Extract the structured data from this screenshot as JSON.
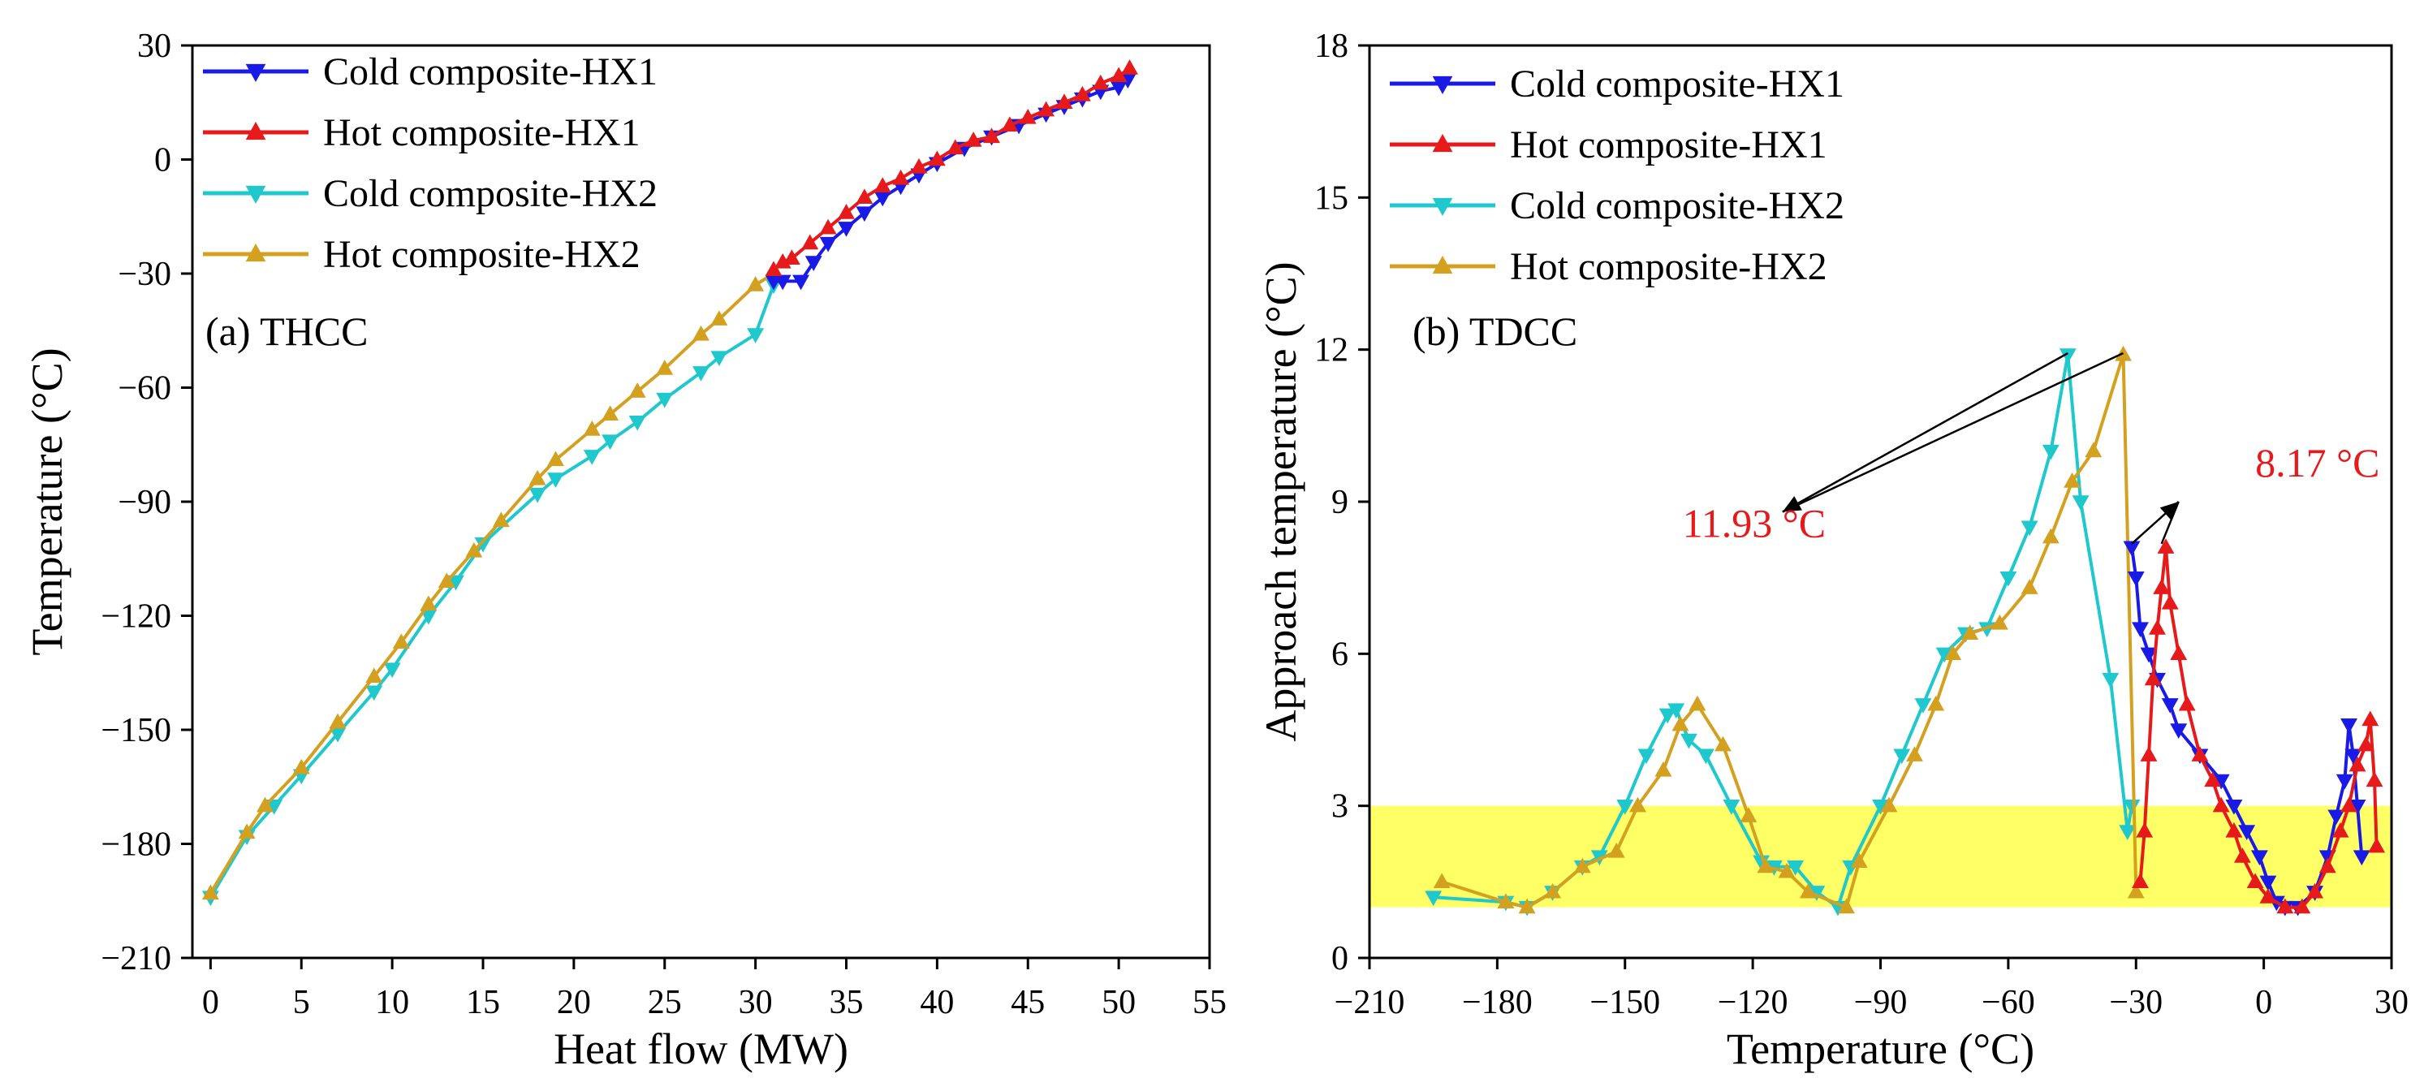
{
  "colors": {
    "cold_hx1": "#1a1ae6",
    "hot_hx1": "#e61a1a",
    "cold_hx2": "#1ec8cc",
    "hot_hx2": "#d4a020",
    "highlight": "#ffff66",
    "hx1_tail_cold": "#7a7ab8",
    "hx1_tail_hot": "#ff8a1a",
    "annotation": "#e61a1a"
  },
  "chart_data": [
    {
      "id": "a",
      "type": "line",
      "panel_label": "(a) THCC",
      "xlabel": "Heat flow (MW)",
      "ylabel": "Temperature (°C)",
      "xlim": [
        -1,
        55
      ],
      "ylim": [
        -210,
        30
      ],
      "xticks": [
        0,
        5,
        10,
        15,
        20,
        25,
        30,
        35,
        40,
        45,
        50,
        55
      ],
      "yticks": [
        -210,
        -180,
        -150,
        -120,
        -90,
        -60,
        -30,
        0,
        30
      ],
      "legend": [
        "Cold composite-HX1",
        "Hot composite-HX1",
        "Cold composite-HX2",
        "Hot composite-HX2"
      ],
      "series": [
        {
          "name": "Cold composite-HX2",
          "color_key": "cold_hx2",
          "marker": "down",
          "points": [
            [
              0,
              -194
            ],
            [
              2,
              -178
            ],
            [
              3.5,
              -170
            ],
            [
              5,
              -162
            ],
            [
              7,
              -151
            ],
            [
              9,
              -140
            ],
            [
              10,
              -134
            ],
            [
              12,
              -120
            ],
            [
              13.5,
              -111
            ],
            [
              15,
              -101
            ],
            [
              18,
              -88
            ],
            [
              19,
              -84
            ],
            [
              21,
              -78
            ],
            [
              22,
              -74
            ],
            [
              23.5,
              -69
            ],
            [
              25,
              -63
            ],
            [
              27,
              -56
            ],
            [
              28,
              -52
            ],
            [
              30,
              -46
            ],
            [
              31,
              -33
            ]
          ]
        },
        {
          "name": "Hot composite-HX2",
          "color_key": "hot_hx2",
          "marker": "up",
          "points": [
            [
              0,
              -193
            ],
            [
              2,
              -177
            ],
            [
              3,
              -170
            ],
            [
              5,
              -160
            ],
            [
              7,
              -148
            ],
            [
              9,
              -136
            ],
            [
              10.5,
              -127
            ],
            [
              12,
              -117
            ],
            [
              13,
              -111
            ],
            [
              14.5,
              -103
            ],
            [
              16,
              -95
            ],
            [
              18,
              -84
            ],
            [
              19,
              -79
            ],
            [
              21,
              -71
            ],
            [
              22,
              -67
            ],
            [
              23.5,
              -61
            ],
            [
              25,
              -55
            ],
            [
              27,
              -46
            ],
            [
              28,
              -42
            ],
            [
              30,
              -33
            ],
            [
              31,
              -30
            ]
          ]
        },
        {
          "name": "Cold composite-HX1",
          "color_key": "cold_hx1",
          "marker": "down",
          "points": [
            [
              31,
              -32
            ],
            [
              31.5,
              -32
            ],
            [
              32.5,
              -32
            ],
            [
              33.2,
              -27
            ],
            [
              34,
              -22
            ],
            [
              35,
              -18
            ],
            [
              36,
              -14
            ],
            [
              37,
              -10
            ],
            [
              38,
              -7
            ],
            [
              39,
              -4
            ],
            [
              40,
              -1
            ],
            [
              41.5,
              3
            ],
            [
              43,
              6
            ],
            [
              44.5,
              9
            ],
            [
              46,
              12
            ],
            [
              47,
              14
            ],
            [
              48,
              16
            ],
            [
              49,
              18
            ],
            [
              50,
              19
            ],
            [
              50.5,
              21
            ]
          ]
        },
        {
          "name": "Hot composite-HX1",
          "color_key": "hot_hx1",
          "marker": "up",
          "points": [
            [
              31,
              -29
            ],
            [
              31.5,
              -27
            ],
            [
              32,
              -26
            ],
            [
              33,
              -22
            ],
            [
              34,
              -18
            ],
            [
              35,
              -14
            ],
            [
              36,
              -10
            ],
            [
              37,
              -7
            ],
            [
              38,
              -5
            ],
            [
              39,
              -2
            ],
            [
              40,
              0
            ],
            [
              41,
              3
            ],
            [
              42,
              5
            ],
            [
              43,
              6
            ],
            [
              44,
              9
            ],
            [
              45,
              11
            ],
            [
              46,
              13
            ],
            [
              47,
              15
            ],
            [
              48,
              17
            ],
            [
              49,
              20
            ],
            [
              50,
              22
            ],
            [
              50.6,
              24
            ]
          ]
        }
      ]
    },
    {
      "id": "b",
      "type": "line",
      "panel_label": "(b) TDCC",
      "xlabel": "Temperature (°C)",
      "ylabel": "Approach temperature (°C)",
      "xlim": [
        -210,
        30
      ],
      "ylim": [
        0,
        18
      ],
      "xticks": [
        -210,
        -180,
        -150,
        -120,
        -90,
        -60,
        -30,
        0,
        30
      ],
      "yticks": [
        0,
        3,
        6,
        9,
        12,
        15,
        18
      ],
      "highlight_band": [
        1,
        3
      ],
      "legend": [
        "Cold composite-HX1",
        "Hot composite-HX1",
        "Cold composite-HX2",
        "Hot composite-HX2"
      ],
      "annotations": [
        {
          "text": "11.93 °C",
          "label_at": [
            -136.5,
            8.3
          ],
          "arrow_from": [
            -113,
            8.8
          ],
          "arrow_to": [
            [
              -46,
              11.93
            ],
            [
              -33,
              11.93
            ]
          ]
        },
        {
          "text": "8.17 °C",
          "label_at": [
            -2,
            9.5
          ],
          "arrow_from": [
            -20,
            9.0
          ],
          "arrow_to": [
            [
              -31,
              8.17
            ],
            [
              -24,
              8.17
            ]
          ]
        }
      ],
      "series": [
        {
          "name": "Cold composite-HX2",
          "color_key": "cold_hx2",
          "marker": "down",
          "points": [
            [
              -195,
              1.2
            ],
            [
              -178,
              1.1
            ],
            [
              -173,
              1.0
            ],
            [
              -167,
              1.3
            ],
            [
              -160,
              1.8
            ],
            [
              -156,
              2.0
            ],
            [
              -150,
              3.0
            ],
            [
              -145,
              4.0
            ],
            [
              -140,
              4.8
            ],
            [
              -138,
              4.9
            ],
            [
              -135,
              4.3
            ],
            [
              -131,
              4.0
            ],
            [
              -125,
              3.0
            ],
            [
              -118,
              1.9
            ],
            [
              -115,
              1.8
            ],
            [
              -110,
              1.8
            ],
            [
              -105,
              1.3
            ],
            [
              -100,
              1.0
            ],
            [
              -97,
              1.8
            ],
            [
              -90,
              3.0
            ],
            [
              -85,
              4.0
            ],
            [
              -80,
              5.0
            ],
            [
              -75,
              6.0
            ],
            [
              -70,
              6.4
            ],
            [
              -65,
              6.5
            ],
            [
              -60,
              7.5
            ],
            [
              -55,
              8.5
            ],
            [
              -50,
              10.0
            ],
            [
              -46,
              11.9
            ],
            [
              -43,
              9.0
            ],
            [
              -36,
              5.5
            ],
            [
              -32,
              2.5
            ],
            [
              -31,
              3.0
            ]
          ]
        },
        {
          "name": "Hot composite-HX2",
          "color_key": "hot_hx2",
          "marker": "up",
          "points": [
            [
              -193,
              1.5
            ],
            [
              -178,
              1.1
            ],
            [
              -173,
              1.0
            ],
            [
              -167,
              1.3
            ],
            [
              -160,
              1.8
            ],
            [
              -152,
              2.1
            ],
            [
              -147,
              3.0
            ],
            [
              -141,
              3.7
            ],
            [
              -137,
              4.6
            ],
            [
              -133,
              5.0
            ],
            [
              -127,
              4.2
            ],
            [
              -121,
              2.8
            ],
            [
              -117,
              1.8
            ],
            [
              -112,
              1.7
            ],
            [
              -107,
              1.3
            ],
            [
              -98,
              1.0
            ],
            [
              -95,
              1.9
            ],
            [
              -88,
              3.0
            ],
            [
              -82,
              4.0
            ],
            [
              -77,
              5.0
            ],
            [
              -73,
              6.0
            ],
            [
              -69,
              6.4
            ],
            [
              -62,
              6.6
            ],
            [
              -55,
              7.3
            ],
            [
              -50,
              8.3
            ],
            [
              -45,
              9.4
            ],
            [
              -40,
              10.0
            ],
            [
              -33,
              11.9
            ],
            [
              -30,
              1.3
            ]
          ]
        },
        {
          "name": "Cold composite-HX1",
          "color_key": "cold_hx1",
          "marker": "down",
          "points": [
            [
              -31,
              8.1
            ],
            [
              -30,
              7.5
            ],
            [
              -29,
              6.5
            ],
            [
              -27,
              6.0
            ],
            [
              -25,
              5.5
            ],
            [
              -22,
              5.0
            ],
            [
              -20,
              4.5
            ],
            [
              -15,
              4.0
            ],
            [
              -10,
              3.5
            ],
            [
              -7,
              3.0
            ],
            [
              -4,
              2.5
            ],
            [
              -1,
              2.0
            ],
            [
              1,
              1.5
            ],
            [
              3,
              1.1
            ],
            [
              5,
              1.0
            ],
            [
              8,
              1.0
            ],
            [
              12,
              1.3
            ],
            [
              15,
              2.0
            ],
            [
              17,
              2.8
            ],
            [
              19,
              3.5
            ],
            [
              20,
              4.6
            ],
            [
              21,
              4.0
            ],
            [
              22,
              3.0
            ],
            [
              23,
              2.0
            ]
          ]
        },
        {
          "name": "Hot composite-HX1",
          "color_key": "hot_hx1",
          "marker": "up",
          "points": [
            [
              -29,
              1.5
            ],
            [
              -28,
              2.5
            ],
            [
              -27,
              4.0
            ],
            [
              -26,
              5.5
            ],
            [
              -25,
              6.5
            ],
            [
              -24,
              7.3
            ],
            [
              -23,
              8.1
            ],
            [
              -22,
              7.0
            ],
            [
              -20,
              6.0
            ],
            [
              -18,
              5.0
            ],
            [
              -15,
              4.0
            ],
            [
              -12,
              3.5
            ],
            [
              -10,
              3.0
            ],
            [
              -7,
              2.5
            ],
            [
              -5,
              2.0
            ],
            [
              -2,
              1.5
            ],
            [
              1,
              1.2
            ],
            [
              5,
              1.0
            ],
            [
              9,
              1.0
            ],
            [
              12,
              1.3
            ],
            [
              15,
              1.8
            ],
            [
              18,
              2.5
            ],
            [
              20,
              3.0
            ],
            [
              22,
              3.8
            ],
            [
              24,
              4.2
            ],
            [
              25,
              4.7
            ],
            [
              26,
              3.5
            ],
            [
              26.5,
              2.2
            ]
          ]
        }
      ]
    }
  ]
}
